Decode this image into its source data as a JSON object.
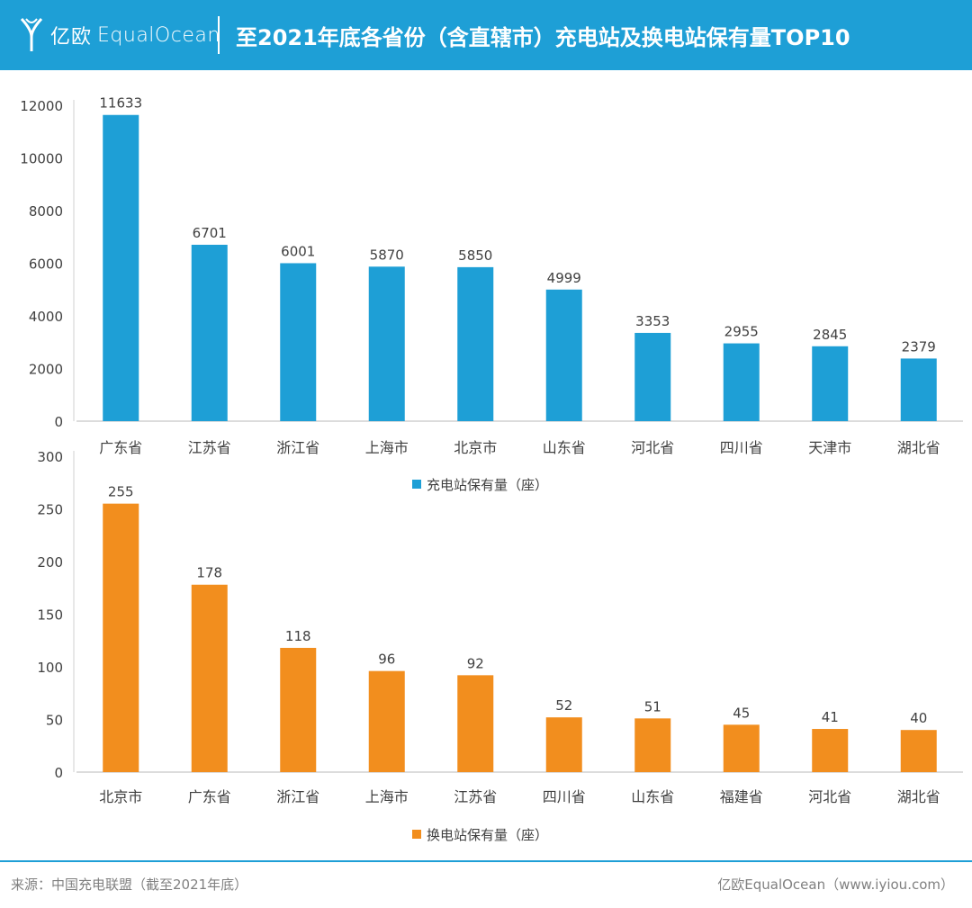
{
  "header": {
    "brand_cn": "亿欧",
    "brand_en": "EqualOcean",
    "title": "至2021年底各省份（含直辖市）充电站及换电站保有量TOP10",
    "accent_color": "#1e9fd6",
    "logo_icon": "equalocean-y-logo-icon"
  },
  "chart_data": [
    {
      "type": "bar",
      "categories": [
        "广东省",
        "江苏省",
        "浙江省",
        "上海市",
        "北京市",
        "山东省",
        "河北省",
        "四川省",
        "天津市",
        "湖北省"
      ],
      "series": [
        {
          "name": "充电站保有量（座）",
          "values": [
            11633,
            6701,
            6001,
            5870,
            5850,
            4999,
            3353,
            2955,
            2845,
            2379
          ],
          "color": "#1e9fd6"
        }
      ],
      "yticks": [
        "0",
        "2000",
        "4000",
        "6000",
        "8000",
        "10000",
        "12000"
      ],
      "ylim": [
        0,
        12000
      ],
      "legend": "bottom-center",
      "grid": false
    },
    {
      "type": "bar",
      "categories": [
        "北京市",
        "广东省",
        "浙江省",
        "上海市",
        "江苏省",
        "四川省",
        "山东省",
        "福建省",
        "河北省",
        "湖北省"
      ],
      "series": [
        {
          "name": "换电站保有量（座）",
          "values": [
            255,
            178,
            118,
            96,
            92,
            52,
            51,
            45,
            41,
            40
          ],
          "color": "#f28e1e"
        }
      ],
      "yticks": [
        "0",
        "50",
        "100",
        "150",
        "200",
        "250",
        "300"
      ],
      "ylim": [
        0,
        300
      ],
      "legend": "bottom-center",
      "grid": false
    }
  ],
  "footer": {
    "source": "来源：中国充电联盟（截至2021年底）",
    "credit": "亿欧EqualOcean（www.iyiou.com）"
  }
}
